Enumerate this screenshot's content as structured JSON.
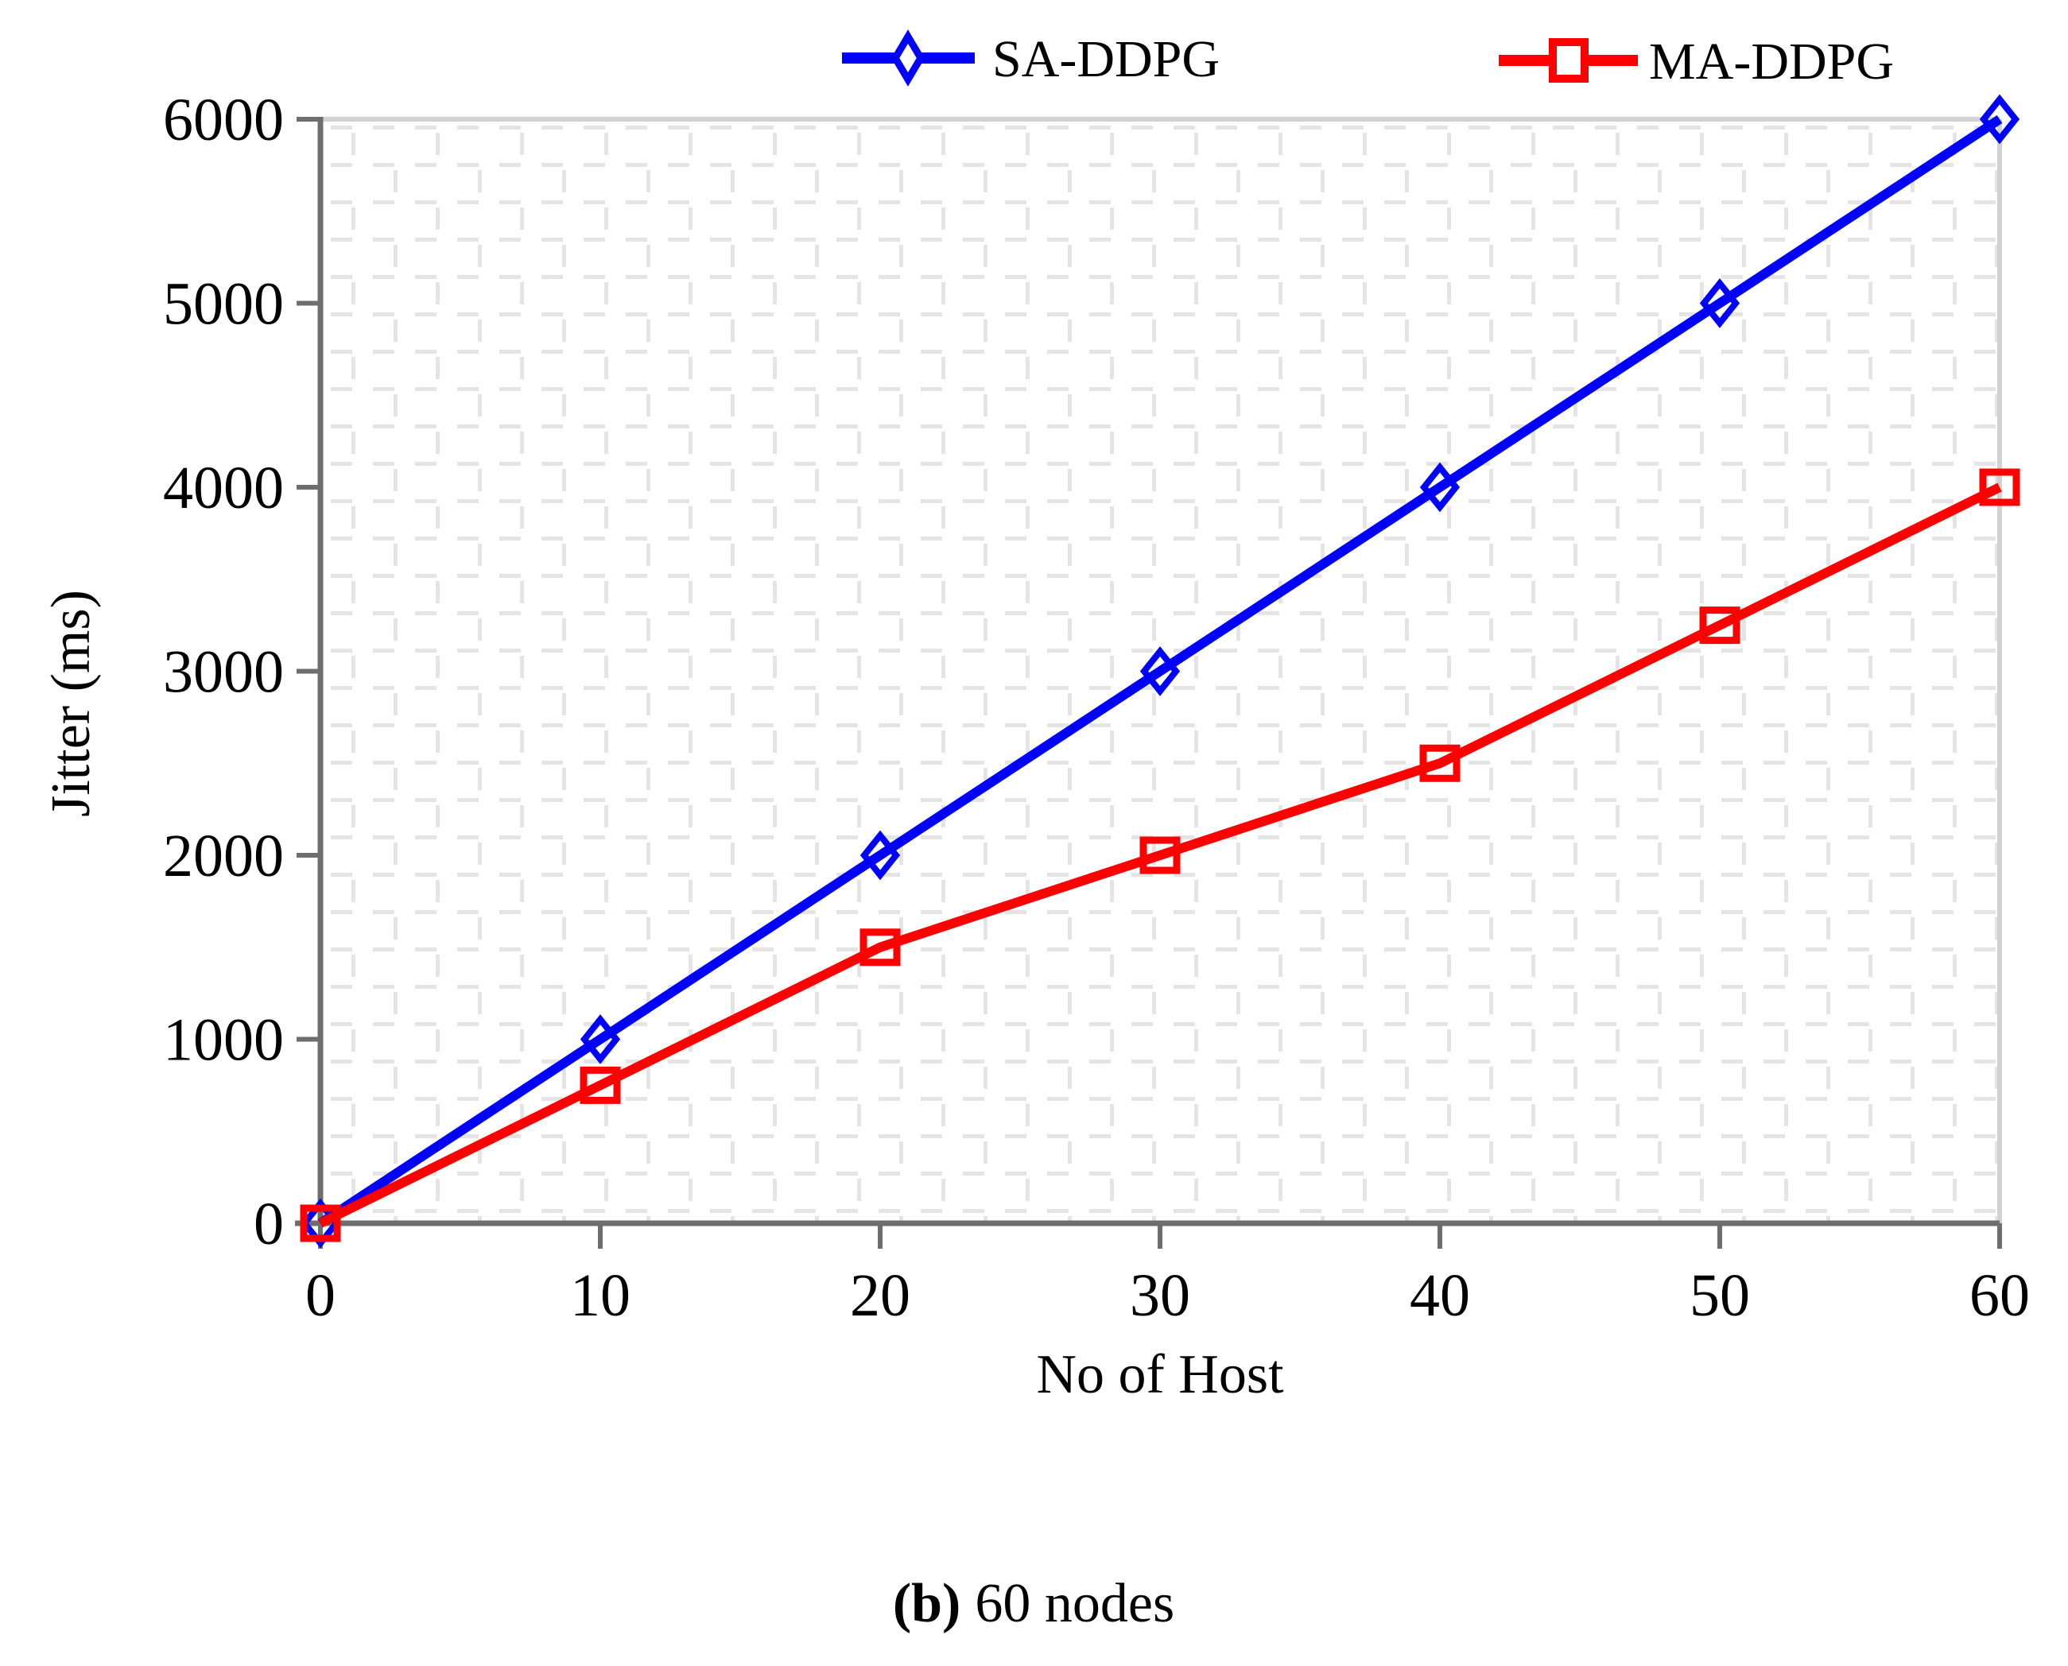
{
  "chart_data": {
    "type": "line",
    "title": "",
    "xlabel": "No of Host",
    "ylabel": "Jitter (ms)",
    "xlim": [
      0,
      60
    ],
    "ylim": [
      0,
      6000
    ],
    "xticks": [
      0,
      10,
      20,
      30,
      40,
      50,
      60
    ],
    "yticks": [
      0,
      1000,
      2000,
      3000,
      4000,
      5000,
      6000
    ],
    "x": [
      0,
      10,
      20,
      30,
      40,
      50,
      60
    ],
    "series": [
      {
        "name": "SA-DDPG",
        "color": "#0000FF",
        "marker": "diamond",
        "values": [
          0,
          1000,
          2000,
          3000,
          4000,
          5000,
          6000
        ]
      },
      {
        "name": "MA-DDPG",
        "color": "#FF0000",
        "marker": "square",
        "values": [
          0,
          750,
          1500,
          2000,
          2500,
          3250,
          4000
        ]
      }
    ],
    "grid": false,
    "plot_background": "light-gray dashed texture pattern",
    "legend_position": "top-center",
    "axis_color": "#6E6E6E",
    "border_color": "#D2D2D2",
    "pattern_color": "#E4E4E4"
  },
  "caption": {
    "prefix": "(b)",
    "rest": "60 nodes"
  }
}
